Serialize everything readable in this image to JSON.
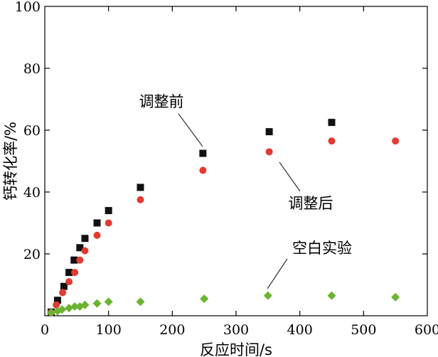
{
  "chart_data": {
    "type": "scatter",
    "title": "",
    "xlabel": "反应时间/s",
    "ylabel": "钙转化率/%",
    "xlim": [
      0,
      600
    ],
    "ylim": [
      0,
      100
    ],
    "xticks": [
      0,
      100,
      200,
      300,
      400,
      500,
      600
    ],
    "yticks": [
      20,
      40,
      60,
      80,
      100
    ],
    "x_tick_labels": [
      "0",
      "100",
      "200",
      "300",
      "400",
      "500",
      "600"
    ],
    "y_tick_labels": [
      "20",
      "40",
      "60",
      "80",
      "100"
    ],
    "grid": false,
    "series": [
      {
        "name": "调整前",
        "marker": "square",
        "color": "#111111",
        "x": [
          10,
          20,
          30,
          38,
          46,
          55,
          63,
          82,
          100,
          150,
          248,
          352,
          450
        ],
        "y": [
          1.2,
          5,
          9.5,
          14,
          18,
          22,
          25,
          30,
          34,
          41.5,
          52.5,
          59.5,
          62.5
        ]
      },
      {
        "name": "调整后",
        "marker": "circle",
        "color": "#e53a2f",
        "x": [
          10,
          18,
          28,
          38,
          47,
          55,
          63,
          82,
          100,
          150,
          248,
          352,
          450,
          550
        ],
        "y": [
          1,
          3.5,
          7.5,
          11,
          14,
          18,
          21,
          26,
          30,
          37.5,
          47,
          53,
          56.5,
          56.5
        ]
      },
      {
        "name": "空白实验",
        "marker": "diamond",
        "color": "#6ab42f",
        "x": [
          10,
          20,
          27,
          38,
          47,
          55,
          63,
          82,
          100,
          150,
          250,
          350,
          450,
          550
        ],
        "y": [
          1,
          1.5,
          2,
          2.5,
          3,
          3,
          3.5,
          4,
          4.5,
          4.5,
          5.5,
          6.5,
          6.5,
          6
        ]
      }
    ],
    "annotations": [
      {
        "text": "调整前",
        "series": 0
      },
      {
        "text": "调整后",
        "series": 1
      },
      {
        "text": "空白实验",
        "series": 2
      }
    ]
  }
}
